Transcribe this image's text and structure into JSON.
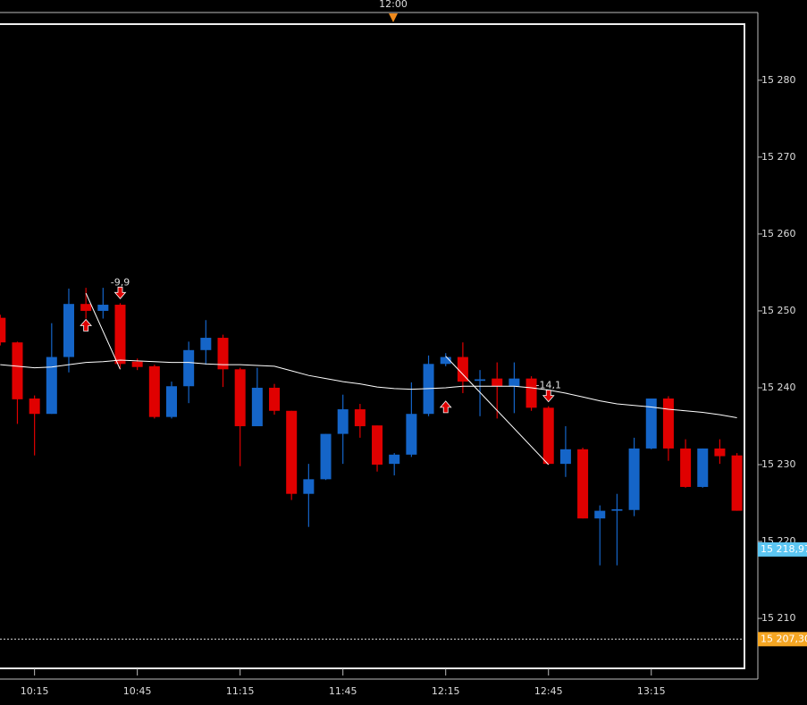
{
  "chart_data": {
    "type": "candlestick",
    "top_marker": "12:00",
    "categories": [
      null,
      null,
      "10:15",
      null,
      null,
      null,
      null,
      null,
      "10:45",
      null,
      null,
      null,
      null,
      null,
      "11:15",
      null,
      null,
      null,
      null,
      null,
      "11:45",
      null,
      null,
      null,
      null,
      null,
      "12:15",
      null,
      null,
      null,
      null,
      null,
      "12:45",
      null,
      null,
      null,
      null,
      null,
      "13:15",
      null,
      null,
      null,
      null,
      null
    ],
    "open": [
      15249.1,
      15245.9,
      15238.6,
      15236.6,
      15244,
      15250.9,
      15250,
      15250.8,
      15243.4,
      15242.8,
      15236.2,
      15240.2,
      15244.9,
      15246.5,
      15242.4,
      15235,
      15240,
      15237,
      15226.2,
      15228.1,
      15234,
      15237.2,
      15235.1,
      15230.1,
      15231.3,
      15236.6,
      15243.1,
      15244,
      15240.9,
      15241.2,
      15240.2,
      15241.2,
      15237.4,
      15230.1,
      15232,
      15223,
      15224,
      15224.1,
      15232.1,
      15238.6,
      15232.1,
      15227.1,
      15232.1,
      15231.2
    ],
    "high": [
      15249.5,
      15246,
      15239,
      15248.4,
      15252.9,
      15253,
      15253,
      15251,
      15243.8,
      15243,
      15240.8,
      15246,
      15248.8,
      15246.9,
      15242.6,
      15242.6,
      15240.5,
      15237,
      15230.1,
      15234,
      15239.1,
      15237.9,
      15235.1,
      15231.5,
      15240.7,
      15244.2,
      15244.5,
      15245.9,
      15242.3,
      15243.3,
      15243.3,
      15241.5,
      15237.6,
      15235,
      15232.2,
      15224.7,
      15226.2,
      15233.5,
      15238.6,
      15238.9,
      15233.3,
      15232.1,
      15233.3,
      15231.5
    ],
    "low": [
      15245.5,
      15235.3,
      15231.2,
      15236.6,
      15242,
      15249,
      15249,
      15242.5,
      15242.3,
      15236,
      15236,
      15238,
      15243,
      15240.1,
      15229.8,
      15235,
      15236.5,
      15225.4,
      15221.9,
      15228,
      15230.1,
      15233.5,
      15229.1,
      15228.6,
      15231,
      15236.3,
      15242.8,
      15239.3,
      15236.3,
      15236,
      15236.7,
      15237,
      15230,
      15228.4,
      15223,
      15216.9,
      15216.9,
      15223.3,
      15232,
      15230.5,
      15227,
      15227,
      15230.1,
      15224
    ],
    "close": [
      15245.9,
      15238.5,
      15236.6,
      15244,
      15250.9,
      15250,
      15250.8,
      15243.1,
      15242.7,
      15236.2,
      15240.2,
      15244.9,
      15246.5,
      15242.4,
      15235,
      15240,
      15237,
      15226.2,
      15228.1,
      15234,
      15237.2,
      15235,
      15230,
      15231.3,
      15236.6,
      15243.1,
      15244,
      15240.8,
      15241.1,
      15240.2,
      15241.2,
      15237.4,
      15230.1,
      15232,
      15223,
      15224,
      15224.2,
      15232.1,
      15238.6,
      15232.1,
      15227.1,
      15232.1,
      15231.1,
      15224
    ],
    "up_color": "#1565c8",
    "down_color": "#e00000",
    "moving_average": {
      "color": "#ffffff",
      "values": [
        15243.0,
        15242.8,
        15242.6,
        15242.7,
        15243.0,
        15243.3,
        15243.4,
        15243.6,
        15243.5,
        15243.4,
        15243.3,
        15243.3,
        15243.1,
        15243.0,
        15243.0,
        15242.9,
        15242.8,
        15242.2,
        15241.6,
        15241.2,
        15240.8,
        15240.5,
        15240.1,
        15239.9,
        15239.8,
        15239.9,
        15240.0,
        15240.2,
        15240.2,
        15240.2,
        15240.2,
        15240.0,
        15239.7,
        15239.3,
        15238.8,
        15238.3,
        15237.9,
        15237.7,
        15237.5,
        15237.2,
        15237.0,
        15236.8,
        15236.5,
        15236.1
      ]
    },
    "trades": [
      {
        "entry": 15252.3,
        "exit": 15242.4,
        "label": "-9,9"
      },
      {
        "entry": 15244.1,
        "exit": 15230,
        "label": "-14,1"
      }
    ],
    "price_lines": [
      {
        "value": 15218.97,
        "label": "15 218,97",
        "color": "#5cc6f2"
      },
      {
        "value": 15207.3,
        "label": "15 207,30",
        "color": "#f5a623",
        "dashed": true
      }
    ],
    "ylim": [
      15203.5,
      15287.3
    ],
    "yticks": [
      {
        "value": 15210,
        "label": "15 210"
      },
      {
        "value": 15220,
        "label": "15 220"
      },
      {
        "value": 15230,
        "label": "15 230"
      },
      {
        "value": 15240,
        "label": "15 240"
      },
      {
        "value": 15250,
        "label": "15 250"
      },
      {
        "value": 15260,
        "label": "15 260"
      },
      {
        "value": 15270,
        "label": "15 270"
      },
      {
        "value": 15280,
        "label": "15 280"
      }
    ]
  }
}
